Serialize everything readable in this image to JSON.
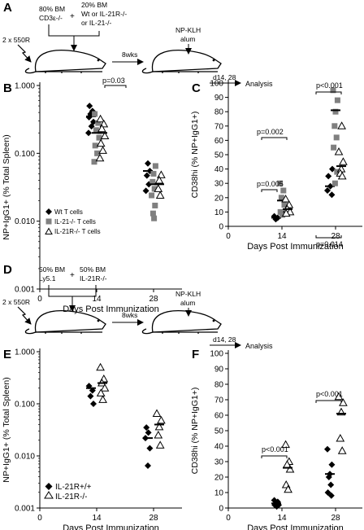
{
  "panels": {
    "A": {
      "letter": "A",
      "box_left": [
        "80% BM",
        "CD3ε-/-"
      ],
      "plus": "+",
      "box_right": [
        "20% BM",
        "Wt or IL-21R-/-",
        "or IL-21-/-"
      ],
      "irradiation": "2 x 550R",
      "wait": "8wks",
      "immunization": [
        "NP-KLH",
        "alum"
      ],
      "timepoints": "d14, 28",
      "analysis": "Analysis"
    },
    "D": {
      "letter": "D",
      "box_left": [
        "50% BM",
        "Ly5.1"
      ],
      "plus": "+",
      "box_right": [
        "50% BM",
        "IL-21R-/-"
      ],
      "irradiation": "2 x 550R",
      "wait": "8wks",
      "immunization": [
        "NP-KLH",
        "alum"
      ],
      "timepoints": "d14, 28",
      "analysis": "Analysis"
    }
  },
  "chart_data": [
    {
      "panel": "B",
      "type": "scatter",
      "xlabel": "Days Post Immunization",
      "ylabel": "NP+IgG1+ (% Total Spleen)",
      "yscale": "log",
      "ylim": [
        0.001,
        1.0
      ],
      "yticks": [
        "1.000",
        "0.100",
        "0.010",
        "0.001"
      ],
      "xlim": [
        0,
        35
      ],
      "xticks": [
        0,
        14,
        28
      ],
      "legend": {
        "placement": "bottom-left",
        "entries": [
          "Wt T cells",
          "IL-21-/- T cells",
          "IL-21R-/- T cells"
        ]
      },
      "annotations": [
        {
          "text": "p=0.03"
        }
      ],
      "series": [
        {
          "name": "Wt T cells",
          "marker": "diamond-filled",
          "color": "#000000",
          "points": [
            [
              14,
              0.34
            ],
            [
              14,
              0.42
            ],
            [
              14,
              0.38
            ],
            [
              14,
              0.29
            ],
            [
              14,
              0.5
            ],
            [
              14,
              0.25
            ],
            [
              14,
              0.2
            ],
            [
              28,
              0.055
            ],
            [
              28,
              0.071
            ],
            [
              28,
              0.047
            ],
            [
              28,
              0.035
            ],
            [
              28,
              0.028
            ]
          ],
          "medians": [
            [
              14,
              0.35
            ],
            [
              28,
              0.055
            ]
          ]
        },
        {
          "name": "IL-21-/- T cells",
          "marker": "square-filled",
          "color": "#808080",
          "points": [
            [
              14,
              0.38
            ],
            [
              14,
              0.28
            ],
            [
              14,
              0.22
            ],
            [
              14,
              0.17
            ],
            [
              14,
              0.13
            ],
            [
              14,
              0.1
            ],
            [
              14,
              0.075
            ],
            [
              28,
              0.065
            ],
            [
              28,
              0.05
            ],
            [
              28,
              0.038
            ],
            [
              28,
              0.03
            ],
            [
              28,
              0.024
            ],
            [
              28,
              0.017
            ],
            [
              28,
              0.013
            ],
            [
              28,
              0.011
            ]
          ],
          "medians": [
            [
              14,
              0.2
            ],
            [
              28,
              0.035
            ]
          ]
        },
        {
          "name": "IL-21R-/- T cells",
          "marker": "triangle-open",
          "color": "#000000",
          "points": [
            [
              14,
              0.32
            ],
            [
              14,
              0.27
            ],
            [
              14,
              0.23
            ],
            [
              14,
              0.18
            ],
            [
              14,
              0.14
            ],
            [
              14,
              0.11
            ],
            [
              14,
              0.085
            ],
            [
              28,
              0.048
            ],
            [
              28,
              0.04
            ],
            [
              28,
              0.03
            ],
            [
              28,
              0.024
            ]
          ],
          "medians": [
            [
              14,
              0.2
            ],
            [
              28,
              0.035
            ]
          ]
        }
      ]
    },
    {
      "panel": "C",
      "type": "scatter",
      "xlabel": "Days Post Immunization",
      "ylabel": "CD38hi (% NP+IgG1+)",
      "yscale": "linear",
      "ylim": [
        0,
        100
      ],
      "yticks": [
        0,
        10,
        20,
        30,
        40,
        50,
        60,
        70,
        80,
        90,
        100
      ],
      "xlim": [
        0,
        35
      ],
      "xticks": [
        0,
        14,
        28
      ],
      "annotations": [
        {
          "text": "p=0.002"
        },
        {
          "text": "p=0.005"
        },
        {
          "text": "p<0.001"
        },
        {
          "text": "p=0.014"
        }
      ],
      "series": [
        {
          "name": "Wt T cells",
          "marker": "diamond-filled",
          "color": "#000000",
          "points": [
            [
              14,
              7
            ],
            [
              14,
              6
            ],
            [
              14,
              5
            ],
            [
              28,
              40
            ],
            [
              28,
              35
            ],
            [
              28,
              28
            ],
            [
              28,
              25
            ],
            [
              28,
              22
            ]
          ],
          "medians": [
            [
              14,
              6
            ],
            [
              28,
              28
            ]
          ]
        },
        {
          "name": "IL-21-/- T cells",
          "marker": "square-filled",
          "color": "#808080",
          "points": [
            [
              14,
              30
            ],
            [
              14,
              25
            ],
            [
              14,
              20
            ],
            [
              14,
              15
            ],
            [
              14,
              10
            ],
            [
              14,
              8
            ],
            [
              28,
              95
            ],
            [
              28,
              88
            ],
            [
              28,
              80
            ],
            [
              28,
              70
            ],
            [
              28,
              62
            ],
            [
              28,
              55
            ],
            [
              28,
              38
            ],
            [
              28,
              30
            ]
          ],
          "medians": [
            [
              14,
              18
            ],
            [
              28,
              81
            ]
          ]
        },
        {
          "name": "IL-21R-/- T cells",
          "marker": "triangle-open",
          "color": "#000000",
          "points": [
            [
              14,
              19
            ],
            [
              14,
              15
            ],
            [
              14,
              12
            ],
            [
              14,
              10
            ],
            [
              14,
              9
            ],
            [
              28,
              70
            ],
            [
              28,
              52
            ],
            [
              28,
              45
            ],
            [
              28,
              40
            ],
            [
              28,
              37
            ],
            [
              28,
              35
            ]
          ],
          "medians": [
            [
              14,
              12
            ],
            [
              28,
              42
            ]
          ]
        }
      ]
    },
    {
      "panel": "E",
      "type": "scatter",
      "xlabel": "Days Post Immunization",
      "ylabel": "NP+IgG1+ (% Total Spleen)",
      "yscale": "log",
      "ylim": [
        0.001,
        1.0
      ],
      "yticks": [
        "1.000",
        "0.100",
        "0.010",
        "0.001"
      ],
      "xlim": [
        0,
        35
      ],
      "xticks": [
        0,
        14,
        28
      ],
      "legend": {
        "placement": "bottom-left",
        "entries": [
          "IL-21R+/+",
          "IL-21R-/-"
        ]
      },
      "series": [
        {
          "name": "IL-21R+/+",
          "marker": "diamond-filled",
          "color": "#000000",
          "points": [
            [
              14,
              0.22
            ],
            [
              14,
              0.18
            ],
            [
              14,
              0.14
            ],
            [
              14,
              0.1
            ],
            [
              28,
              0.035
            ],
            [
              28,
              0.028
            ],
            [
              28,
              0.022
            ],
            [
              28,
              0.014
            ],
            [
              28,
              0.0065
            ]
          ],
          "medians": [
            [
              14,
              0.2
            ],
            [
              28,
              0.022
            ]
          ]
        },
        {
          "name": "IL-21R-/-",
          "marker": "triangle-open",
          "color": "#000000",
          "points": [
            [
              14,
              0.5
            ],
            [
              14,
              0.3
            ],
            [
              14,
              0.25
            ],
            [
              14,
              0.2
            ],
            [
              14,
              0.16
            ],
            [
              14,
              0.12
            ],
            [
              28,
              0.065
            ],
            [
              28,
              0.048
            ],
            [
              28,
              0.036
            ],
            [
              28,
              0.025
            ],
            [
              28,
              0.016
            ]
          ],
          "medians": [
            [
              14,
              0.25
            ],
            [
              28,
              0.04
            ]
          ]
        }
      ]
    },
    {
      "panel": "F",
      "type": "scatter",
      "xlabel": "Days Post Immunization",
      "ylabel": "CD38hi (% NP+IgG1+)",
      "yscale": "linear",
      "ylim": [
        0,
        100
      ],
      "yticks": [
        0,
        10,
        20,
        30,
        40,
        50,
        60,
        70,
        80,
        90,
        100
      ],
      "xlim": [
        0,
        35
      ],
      "xticks": [
        0,
        14,
        28
      ],
      "annotations": [
        {
          "text": "p<0.001"
        },
        {
          "text": "p<0.001"
        }
      ],
      "series": [
        {
          "name": "IL-21R+/+",
          "marker": "diamond-filled",
          "color": "#000000",
          "points": [
            [
              14,
              5
            ],
            [
              14,
              4
            ],
            [
              14,
              3
            ],
            [
              14,
              2
            ],
            [
              14,
              2
            ],
            [
              14,
              1
            ],
            [
              28,
              38
            ],
            [
              28,
              28
            ],
            [
              28,
              22
            ],
            [
              28,
              20
            ],
            [
              28,
              15
            ],
            [
              28,
              10
            ],
            [
              28,
              8
            ]
          ],
          "medians": [
            [
              14,
              3
            ],
            [
              28,
              22
            ]
          ]
        },
        {
          "name": "IL-21R-/-",
          "marker": "triangle-open",
          "color": "#000000",
          "points": [
            [
              14,
              41
            ],
            [
              14,
              30
            ],
            [
              14,
              28
            ],
            [
              14,
              25
            ],
            [
              14,
              15
            ],
            [
              14,
              12
            ],
            [
              28,
              72
            ],
            [
              28,
              68
            ],
            [
              28,
              62
            ],
            [
              28,
              45
            ],
            [
              28,
              37
            ]
          ],
          "medians": [
            [
              14,
              26
            ],
            [
              28,
              61
            ]
          ]
        }
      ]
    }
  ]
}
